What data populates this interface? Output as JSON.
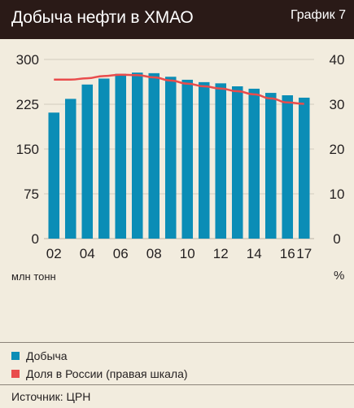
{
  "header": {
    "title": "Добыча нефти в ХМАО",
    "graph_number": "График 7"
  },
  "units": {
    "left": "млн тонн",
    "right": "%"
  },
  "legend": {
    "items": [
      {
        "label": "Добыча",
        "color": "#0b8db6"
      },
      {
        "label": "Доля в России (правая шкала)",
        "color": "#e94c4c"
      }
    ]
  },
  "source": "Источник: ЦРН",
  "chart_data": {
    "type": "bar",
    "categories": [
      "02",
      "03",
      "04",
      "05",
      "06",
      "07",
      "08",
      "09",
      "10",
      "11",
      "12",
      "13",
      "14",
      "15",
      "16",
      "17"
    ],
    "x_tick_labels": [
      "02",
      "",
      "04",
      "",
      "06",
      "",
      "08",
      "",
      "10",
      "",
      "12",
      "",
      "14",
      "",
      "16",
      "17"
    ],
    "series": [
      {
        "name": "Добыча",
        "type": "bar",
        "axis": "left",
        "color": "#0b8db6",
        "values": [
          211,
          234,
          258,
          268,
          276,
          278,
          277,
          271,
          266,
          262,
          260,
          255,
          251,
          244,
          240,
          236
        ]
      },
      {
        "name": "Доля в России (правая шкала)",
        "type": "line",
        "axis": "right",
        "color": "#e94c4c",
        "values": [
          35.5,
          35.5,
          35.8,
          36.3,
          36.6,
          36.5,
          36.0,
          35.3,
          34.6,
          34.0,
          33.5,
          32.9,
          32.2,
          31.3,
          30.4,
          30.1
        ]
      }
    ],
    "y_left": {
      "ticks": [
        "0",
        "75",
        "150",
        "225",
        "300"
      ],
      "lim": [
        0,
        300
      ]
    },
    "y_right": {
      "ticks": [
        "0",
        "10",
        "20",
        "30",
        "40"
      ],
      "lim": [
        0,
        40
      ]
    }
  }
}
